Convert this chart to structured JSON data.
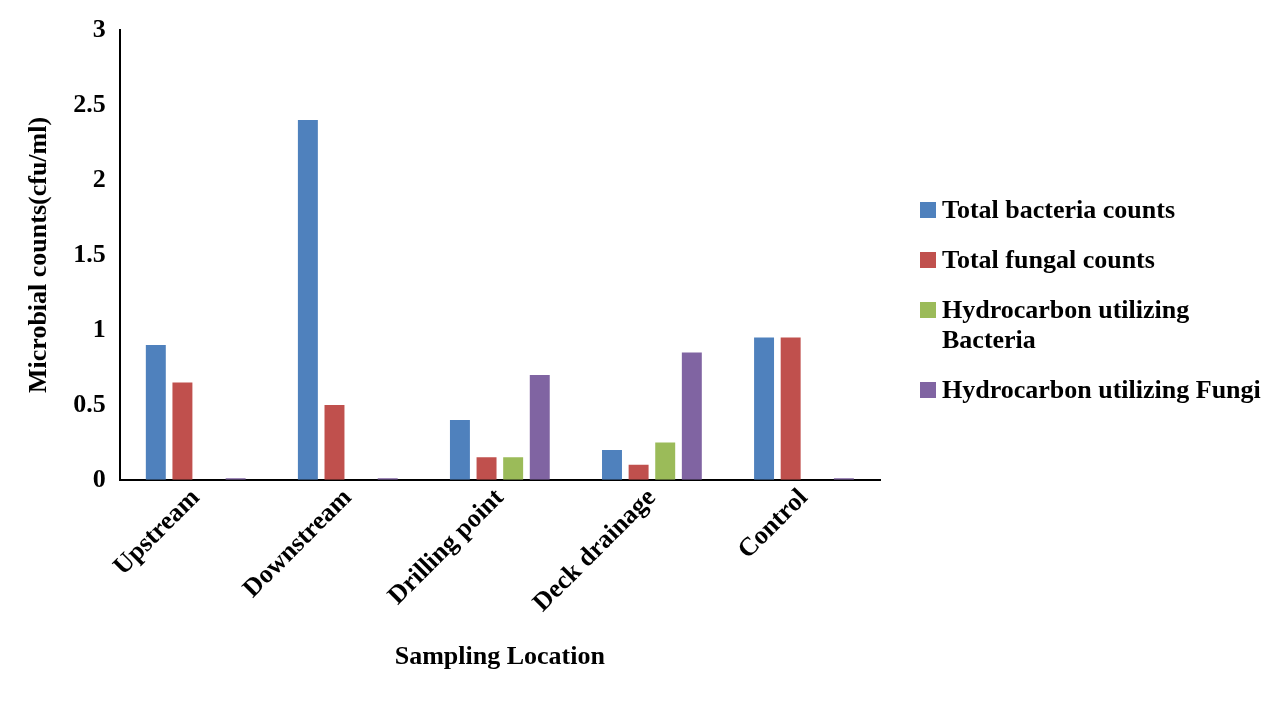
{
  "chart_data": {
    "type": "bar",
    "xlabel": "Sampling Location",
    "ylabel": "Microbial counts(cfu/ml)",
    "categories": [
      "Upstream",
      "Downstream",
      "Drilling point",
      "Deck drainage",
      "Control"
    ],
    "series": [
      {
        "name": "Total bacteria counts",
        "color": "#4f81bd",
        "values": [
          0.9,
          2.4,
          0.4,
          0.2,
          0.95
        ]
      },
      {
        "name": "Total fungal counts",
        "color": "#c0504d",
        "values": [
          0.65,
          0.5,
          0.15,
          0.1,
          0.95
        ]
      },
      {
        "name": "Hydrocarbon utilizing Bacteria",
        "color": "#9bbb59",
        "values": [
          0,
          0,
          0.15,
          0.25,
          0
        ]
      },
      {
        "name": "Hydrocarbon utilizing Fungi",
        "color": "#8064a2",
        "values": [
          0.01,
          0.01,
          0.7,
          0.85,
          0.01
        ]
      }
    ],
    "ylim": [
      0,
      3
    ],
    "yticks": [
      0,
      0.5,
      1,
      1.5,
      2,
      2.5,
      3
    ],
    "grid": false,
    "legend": "right"
  }
}
